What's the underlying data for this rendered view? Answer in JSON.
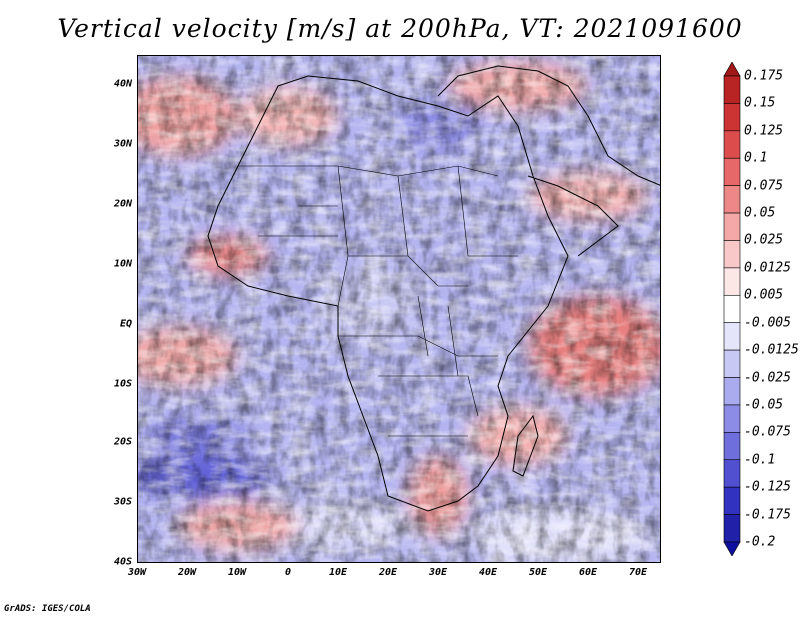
{
  "title": "Vertical velocity [m/s] at 200hPa, VT: 2021091600",
  "map": {
    "lat_labels": [
      "40N",
      "30N",
      "20N",
      "10N",
      "EQ",
      "10S",
      "20S",
      "30S",
      "40S"
    ],
    "lon_labels": [
      "30W",
      "20W",
      "10W",
      "0",
      "10E",
      "20E",
      "30E",
      "40E",
      "50E",
      "60E",
      "70E"
    ],
    "lat_range": [
      -40,
      44
    ],
    "lon_range": [
      -30,
      75
    ]
  },
  "colorbar": {
    "labels": [
      "0.175",
      "0.15",
      "0.125",
      "0.1",
      "0.075",
      "0.05",
      "0.025",
      "0.0125",
      "0.005",
      "-0.005",
      "-0.0125",
      "-0.025",
      "-0.05",
      "-0.075",
      "-0.1",
      "-0.125",
      "-0.175",
      "-0.2"
    ],
    "colors": [
      "#a01818",
      "#b82424",
      "#cc3434",
      "#dc4c4c",
      "#e66868",
      "#ee8888",
      "#f4a8a8",
      "#f8c8c8",
      "#fce6e6",
      "#ffffff",
      "#e4e4fa",
      "#c8c8f4",
      "#aaaaee",
      "#8c8ce6",
      "#6e6edc",
      "#5050d0",
      "#3232c0",
      "#2020a8",
      "#1010a0"
    ]
  },
  "credit": "GrADS: IGES/COLA"
}
